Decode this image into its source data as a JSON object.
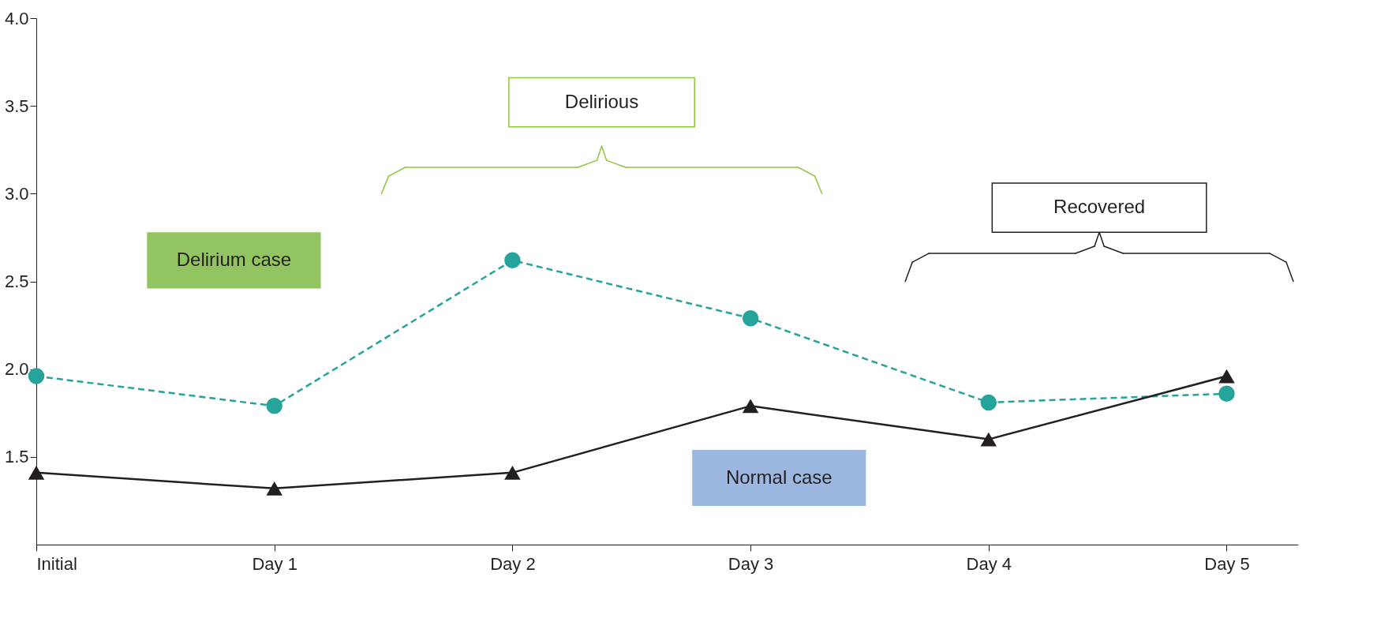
{
  "chart_data": {
    "type": "line",
    "categories": [
      "Initial",
      "Day 1",
      "Day 2",
      "Day 3",
      "Day 4",
      "Day 5"
    ],
    "series": [
      {
        "color": "#26a39a",
        "line_style": "dashed",
        "marker": "circle",
        "values": [
          1.96,
          1.79,
          2.62,
          2.29,
          1.81,
          1.86
        ]
      },
      {
        "color": "#231f20",
        "line_style": "solid",
        "marker": "triangle",
        "values": [
          1.41,
          1.32,
          1.41,
          1.79,
          1.6,
          1.96
        ]
      }
    ],
    "annotations": [
      "Delirium case",
      "Normal case",
      "Delirious",
      "Recovered"
    ],
    "ylim": [
      1.0,
      4.0
    ],
    "yticks": [
      {
        "value": 1.5,
        "label": "1.5"
      },
      {
        "value": 2.0,
        "label": "2.0"
      },
      {
        "value": 2.5,
        "label": "2.5"
      },
      {
        "value": 3.0,
        "label": "3.0"
      },
      {
        "value": 3.5,
        "label": "3.5"
      },
      {
        "value": 4.0,
        "label": "4.0"
      }
    ],
    "grid": false
  }
}
